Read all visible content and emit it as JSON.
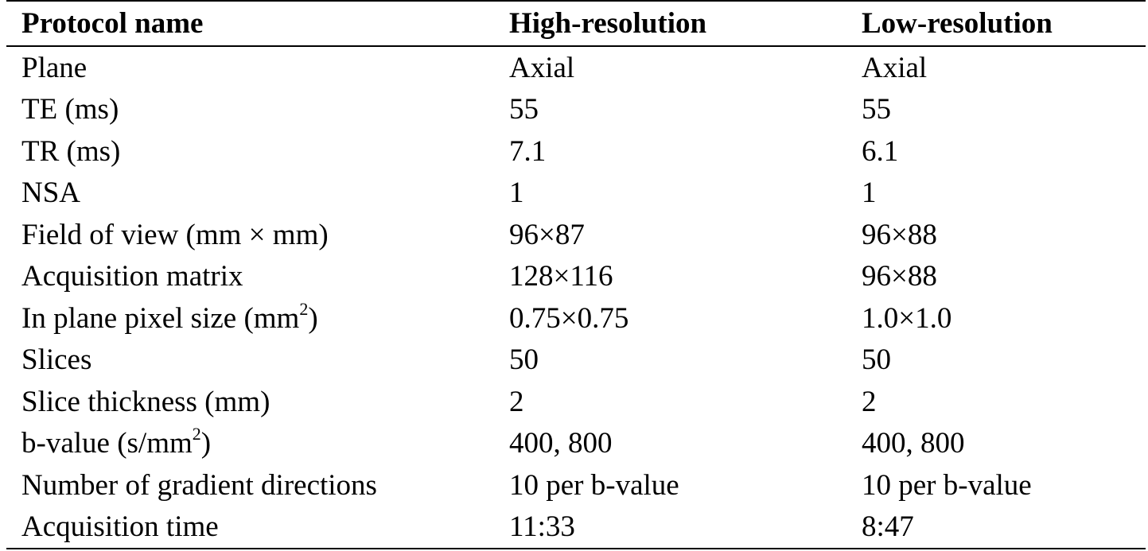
{
  "table": {
    "header": [
      "Protocol name",
      "High-resolution",
      "Low-resolution"
    ],
    "rows": [
      [
        {
          "text": "Plane"
        },
        "Axial",
        "Axial"
      ],
      [
        {
          "text": "TE (ms)"
        },
        "55",
        "55"
      ],
      [
        {
          "text": "TR (ms)"
        },
        "7.1",
        "6.1"
      ],
      [
        {
          "text": "NSA"
        },
        "1",
        "1"
      ],
      [
        {
          "text": "Field of view (mm × mm)"
        },
        "96×87",
        "96×88"
      ],
      [
        {
          "text": "Acquisition matrix"
        },
        "128×116",
        "96×88"
      ],
      [
        {
          "text": "In plane pixel size (mm",
          "sup": "2",
          "tail": ")"
        },
        "0.75×0.75",
        "1.0×1.0"
      ],
      [
        {
          "text": "Slices"
        },
        "50",
        "50"
      ],
      [
        {
          "text": "Slice thickness (mm)"
        },
        "2",
        "2"
      ],
      [
        {
          "text": "b-value (s/mm",
          "sup": "2",
          "tail": ")"
        },
        "400, 800",
        "400, 800"
      ],
      [
        {
          "text": "Number of gradient directions"
        },
        "10 per b-value",
        "10 per b-value"
      ],
      [
        {
          "text": "Acquisition time"
        },
        "11:33",
        "8:47"
      ]
    ]
  }
}
